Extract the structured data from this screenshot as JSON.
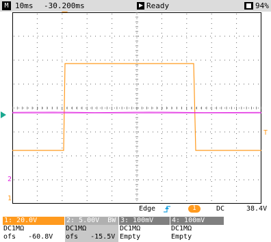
{
  "header": {
    "mode_badge": "M",
    "timebase": "10ms",
    "time_offset": "-30.200ms",
    "run_state": "Ready",
    "battery": "94%"
  },
  "waveform": {
    "ch1_color": "#ff9a1e",
    "ch2_color": "#e020e0",
    "ch1_marker": "1",
    "ch2_marker": "2",
    "trigger_level_marker": "T"
  },
  "trigger": {
    "type": "Edge",
    "source": "1",
    "coupling": "DC",
    "level": "38.4V"
  },
  "channels": [
    {
      "label": "1: 20.0V",
      "bw": "",
      "line2": "DC1MΩ",
      "line3_label": "ofs",
      "line3_value": "-60.8V",
      "head_bg": "#ff9a1e",
      "body_bg": "#ffffff"
    },
    {
      "label": "2: 5.00V",
      "bw": "BW",
      "line2": "DC1MΩ",
      "line3_label": "ofs",
      "line3_value": "-15.5V",
      "head_bg": "#b0b0b0",
      "body_bg": "#c8c8c8"
    },
    {
      "label": "3: 100mV",
      "bw": "",
      "line2": "DC1MΩ",
      "line3_label": "Empty",
      "line3_value": "",
      "head_bg": "#808080",
      "body_bg": "#ffffff"
    },
    {
      "label": "4: 100mV",
      "bw": "",
      "line2": "DC1MΩ",
      "line3_label": "Empty",
      "line3_value": "",
      "head_bg": "#808080",
      "body_bg": "#ffffff"
    }
  ]
}
